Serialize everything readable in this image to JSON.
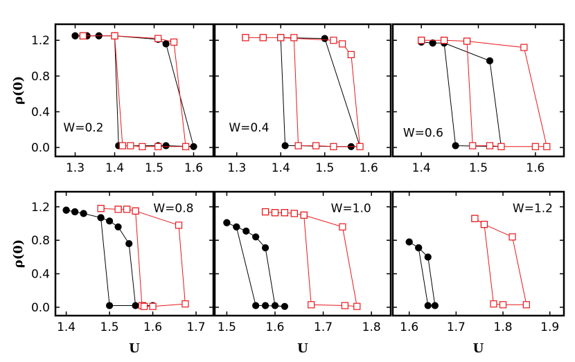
{
  "colors": {
    "black_series": "#000000",
    "red_series": "#e8161b"
  },
  "chart_data": [
    {
      "type": "line",
      "annotation": "W=0.2",
      "ylabel": "ρ(0)",
      "xlabel": "",
      "xlim": [
        1.25,
        1.65
      ],
      "ylim": [
        -0.1,
        1.38
      ],
      "xticks": [
        "1.3",
        "1.4",
        "1.5",
        "1.6"
      ],
      "yticks": [
        "0.0",
        "0.4",
        "0.8",
        "1.2"
      ],
      "series": [
        {
          "marker": "filled-circle",
          "color": "#000000",
          "x": [
            1.3,
            1.33,
            1.36,
            1.4,
            1.41,
            1.42,
            1.51,
            1.53,
            1.6,
            1.53,
            1.51,
            1.4,
            1.36,
            1.33,
            1.3
          ],
          "y": [
            1.25,
            1.25,
            1.25,
            1.25,
            0.02,
            0.02,
            0.02,
            0.02,
            0.01,
            1.16,
            1.21,
            1.25,
            1.25,
            1.25,
            1.25
          ]
        },
        {
          "marker": "open-square",
          "color": "#e8161b",
          "x": [
            1.32,
            1.4,
            1.42,
            1.44,
            1.47,
            1.51,
            1.58,
            1.55,
            1.51,
            1.4,
            1.32
          ],
          "y": [
            1.25,
            1.25,
            0.02,
            0.02,
            0.01,
            0.01,
            0.01,
            1.18,
            1.22,
            1.25,
            1.25
          ]
        }
      ]
    },
    {
      "type": "line",
      "annotation": "W=0.4",
      "ylabel": "",
      "xlabel": "",
      "xlim": [
        1.25,
        1.65
      ],
      "ylim": [
        -0.1,
        1.38
      ],
      "xticks": [
        "1.3",
        "1.4",
        "1.5",
        "1.6"
      ],
      "yticks": [],
      "series": [
        {
          "marker": "filled-circle",
          "color": "#000000",
          "x": [
            1.4,
            1.41,
            1.44,
            1.52,
            1.56,
            1.58,
            1.5,
            1.4
          ],
          "y": [
            1.23,
            0.02,
            0.02,
            0.01,
            0.01,
            0.01,
            1.22,
            1.23
          ]
        },
        {
          "marker": "open-square",
          "color": "#e8161b",
          "x": [
            1.32,
            1.36,
            1.4,
            1.43,
            1.44,
            1.48,
            1.52,
            1.58,
            1.56,
            1.54,
            1.52,
            1.4,
            1.36,
            1.32
          ],
          "y": [
            1.23,
            1.23,
            1.23,
            1.23,
            0.02,
            0.02,
            0.01,
            0.01,
            1.04,
            1.16,
            1.2,
            1.23,
            1.23,
            1.23
          ]
        }
      ]
    },
    {
      "type": "line",
      "annotation": "W=0.6",
      "ylabel": "",
      "xlabel": "",
      "xlim": [
        1.35,
        1.65
      ],
      "ylim": [
        -0.1,
        1.38
      ],
      "xticks": [
        "1.4",
        "1.5",
        "1.6"
      ],
      "yticks": [],
      "series": [
        {
          "marker": "filled-circle",
          "color": "#000000",
          "x": [
            1.4,
            1.42,
            1.44,
            1.46,
            1.54,
            1.52,
            1.44,
            1.42,
            1.4
          ],
          "y": [
            1.18,
            1.17,
            1.17,
            0.02,
            0.01,
            0.97,
            1.17,
            1.17,
            1.18
          ]
        },
        {
          "marker": "open-square",
          "color": "#e8161b",
          "x": [
            1.4,
            1.44,
            1.48,
            1.49,
            1.52,
            1.54,
            1.6,
            1.62,
            1.58,
            1.48,
            1.44,
            1.4
          ],
          "y": [
            1.2,
            1.2,
            1.19,
            0.02,
            0.02,
            0.01,
            0.01,
            0.01,
            1.12,
            1.19,
            1.2,
            1.2
          ]
        }
      ]
    },
    {
      "type": "line",
      "annotation": "W=0.8",
      "ylabel": "ρ(0)",
      "xlabel": "U",
      "xlim": [
        1.375,
        1.74
      ],
      "ylim": [
        -0.1,
        1.38
      ],
      "xticks": [
        "1.4",
        "1.5",
        "1.6",
        "1.7"
      ],
      "yticks": [
        "0.0",
        "0.4",
        "0.8",
        "1.2"
      ],
      "series": [
        {
          "marker": "filled-circle",
          "color": "#000000",
          "x": [
            1.4,
            1.42,
            1.44,
            1.48,
            1.5,
            1.52,
            1.545,
            1.56,
            1.58,
            1.6,
            1.58,
            1.5,
            1.48,
            1.44,
            1.42,
            1.4
          ],
          "y": [
            1.16,
            1.14,
            1.12,
            1.07,
            1.03,
            0.96,
            0.76,
            0.02,
            0.02,
            0.02,
            0.02,
            0.02,
            1.07,
            1.12,
            1.14,
            1.16
          ]
        },
        {
          "marker": "open-square",
          "color": "#e8161b",
          "x": [
            1.48,
            1.52,
            1.54,
            1.56,
            1.575,
            1.58,
            1.6,
            1.675,
            1.66,
            1.56,
            1.54,
            1.52,
            1.48
          ],
          "y": [
            1.18,
            1.17,
            1.17,
            1.15,
            0.02,
            0.01,
            0.01,
            0.04,
            0.98,
            1.15,
            1.17,
            1.17,
            1.18
          ]
        }
      ]
    },
    {
      "type": "line",
      "annotation": "W=1.0",
      "ylabel": "",
      "xlabel": "U",
      "xlim": [
        1.475,
        1.84
      ],
      "ylim": [
        -0.1,
        1.38
      ],
      "xticks": [
        "1.5",
        "1.6",
        "1.7",
        "1.8"
      ],
      "yticks": [],
      "series": [
        {
          "marker": "filled-circle",
          "color": "#000000",
          "x": [
            1.5,
            1.52,
            1.54,
            1.56,
            1.58,
            1.6,
            1.62,
            1.58,
            1.56,
            1.52,
            1.5
          ],
          "y": [
            1.01,
            0.96,
            0.91,
            0.84,
            0.71,
            0.02,
            0.01,
            0.02,
            0.02,
            0.96,
            1.01
          ]
        },
        {
          "marker": "open-square",
          "color": "#e8161b",
          "x": [
            1.58,
            1.6,
            1.62,
            1.64,
            1.66,
            1.675,
            1.745,
            1.77,
            1.74,
            1.66,
            1.64,
            1.62,
            1.6,
            1.58
          ],
          "y": [
            1.14,
            1.13,
            1.13,
            1.12,
            1.1,
            0.03,
            0.02,
            0.01,
            0.96,
            1.1,
            1.12,
            1.13,
            1.13,
            1.14
          ]
        }
      ]
    },
    {
      "type": "line",
      "annotation": "W=1.2",
      "ylabel": "",
      "xlabel": "U",
      "xlim": [
        1.565,
        1.93
      ],
      "ylim": [
        -0.1,
        1.38
      ],
      "xticks": [
        "1.6",
        "1.7",
        "1.8",
        "1.9"
      ],
      "yticks": [],
      "series": [
        {
          "marker": "filled-circle",
          "color": "#000000",
          "x": [
            1.6,
            1.62,
            1.64,
            1.655,
            1.64,
            1.62,
            1.6
          ],
          "y": [
            0.78,
            0.71,
            0.02,
            0.02,
            0.6,
            0.71,
            0.78
          ]
        },
        {
          "marker": "open-square",
          "color": "#e8161b",
          "x": [
            1.74,
            1.76,
            1.78,
            1.8,
            1.85,
            1.82,
            1.76,
            1.74
          ],
          "y": [
            1.06,
            0.99,
            0.04,
            0.03,
            0.03,
            0.84,
            0.99,
            1.06
          ]
        }
      ]
    }
  ]
}
